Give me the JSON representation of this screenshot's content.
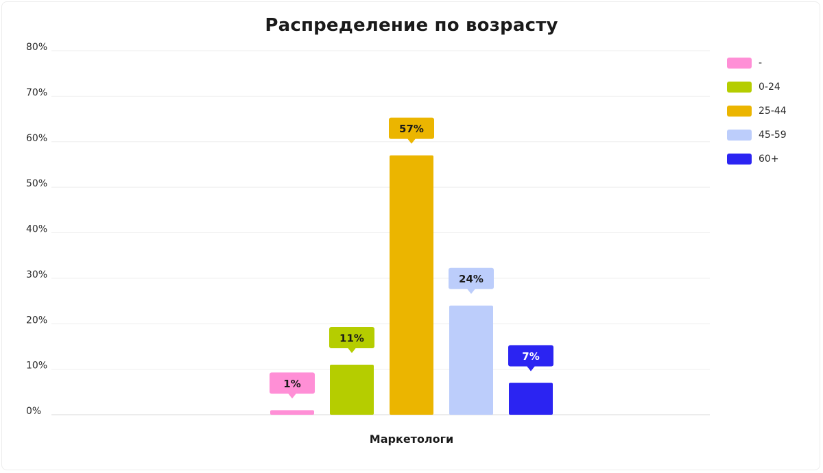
{
  "chart_data": {
    "type": "bar",
    "title": "Распределение по возрасту",
    "categories": [
      "Маркетологи"
    ],
    "series": [
      {
        "name": "-",
        "values": [
          1
        ],
        "label": "1%",
        "color": "#ff8fd6"
      },
      {
        "name": "0-24",
        "values": [
          11
        ],
        "label": "11%",
        "color": "#b5cd00"
      },
      {
        "name": "25-44",
        "values": [
          57
        ],
        "label": "57%",
        "color": "#ebb500"
      },
      {
        "name": "45-59",
        "values": [
          24
        ],
        "label": "24%",
        "color": "#bccdfb"
      },
      {
        "name": "60+",
        "values": [
          7
        ],
        "label": "7%",
        "color": "#2b24f2"
      }
    ],
    "ylim": [
      0,
      80
    ],
    "yticks": [
      "0%",
      "10%",
      "20%",
      "30%",
      "40%",
      "50%",
      "60%",
      "70%",
      "80%"
    ],
    "grid": true,
    "legend_position": "top-right"
  }
}
